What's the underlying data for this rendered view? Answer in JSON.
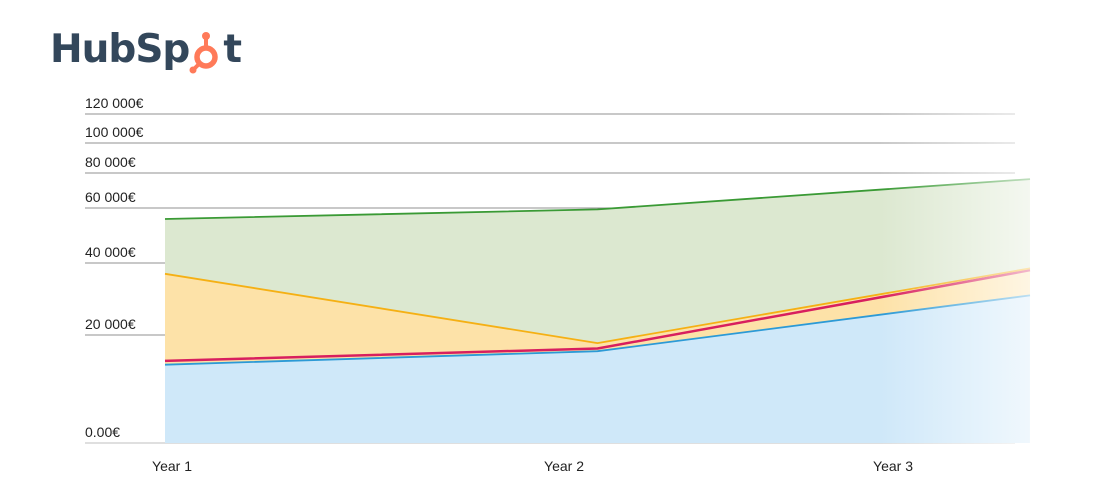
{
  "brand": {
    "logo_text": "HubSpot",
    "logo_left": "HubSp",
    "logo_right": "t",
    "accent": "#ff7a59",
    "text_color": "#33475b"
  },
  "chart_data": {
    "type": "area",
    "categories": [
      "Year 1",
      "Year 2",
      "Year 3"
    ],
    "y_ticks": [
      {
        "value": 0,
        "label": "0.00€"
      },
      {
        "value": 20000,
        "label": "20 000€"
      },
      {
        "value": 40000,
        "label": "40 000€"
      },
      {
        "value": 60000,
        "label": "60 000€"
      },
      {
        "value": 80000,
        "label": "80 000€"
      },
      {
        "value": 100000,
        "label": "100 000€"
      },
      {
        "value": 120000,
        "label": "120 000€"
      }
    ],
    "series": [
      {
        "values": [
          14500,
          17000,
          31000
        ],
        "line": "#2c9ad6",
        "fill": "#cfe8f9"
      },
      {
        "values": [
          15200,
          17500,
          38000
        ],
        "line": "#d81f5e",
        "fill": "none"
      },
      {
        "values": [
          37000,
          18500,
          38500
        ],
        "line": "#f5b014",
        "fill": "#fde2a8"
      },
      {
        "values": [
          56000,
          59500,
          76500
        ],
        "line": "#3a9a35",
        "fill": "#dce8d0"
      }
    ],
    "grid": true
  }
}
